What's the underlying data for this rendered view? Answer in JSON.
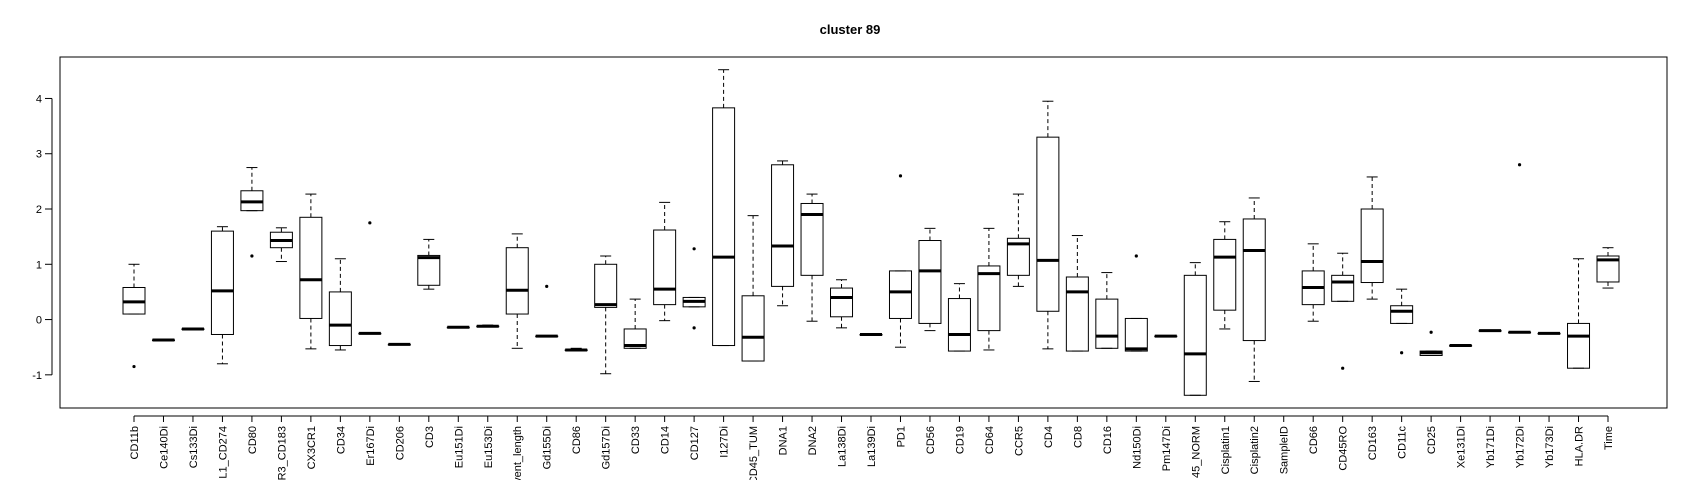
{
  "chart_data": {
    "type": "box",
    "title": "cluster 89",
    "xlabel": "",
    "ylabel": "",
    "ylim": [
      -1.6,
      4.75
    ],
    "yticks": [
      -1,
      0,
      1,
      2,
      3,
      4
    ],
    "grid": false,
    "legend": "none",
    "categories": [
      "CD11b",
      "Ce140Di",
      "Cs133Di",
      "L1_CD274",
      "CD80",
      "R3_CD183",
      "CX3CR1",
      "CD34",
      "Er167Di",
      "CD206",
      "CD3",
      "Eu151Di",
      "Eu153Di",
      "vent_length",
      "Gd155Di",
      "CD86",
      "Gd157Di",
      "CD33",
      "CD14",
      "CD127",
      "I127Di",
      "CD45_TUM",
      "DNA1",
      "DNA2",
      "La138Di",
      "La139Di",
      "PD1",
      "CD56",
      "CD19",
      "CD64",
      "CCR5",
      "CD4",
      "CD8",
      "CD16",
      "Nd150Di",
      "Pm147Di",
      "45_NORM",
      "Cisplatin1",
      "Cisplatin2",
      "SampleID",
      "CD66",
      "CD45RO",
      "CD163",
      "CD11c",
      "CD25",
      "Xe131Di",
      "Yb171Di",
      "Yb172Di",
      "Yb173Di",
      "HLA.DR",
      "Time"
    ],
    "boxes": [
      {
        "whisker_low": 0.1,
        "q1": 0.1,
        "median": 0.32,
        "q3": 0.58,
        "whisker_high": 1.0,
        "outliers": [
          -0.85
        ]
      },
      {
        "whisker_low": -0.37,
        "q1": -0.37,
        "median": -0.37,
        "q3": -0.37,
        "whisker_high": -0.37,
        "outliers": []
      },
      {
        "whisker_low": -0.17,
        "q1": -0.17,
        "median": -0.17,
        "q3": -0.17,
        "whisker_high": -0.17,
        "outliers": []
      },
      {
        "whisker_low": -0.8,
        "q1": -0.27,
        "median": 0.52,
        "q3": 1.6,
        "whisker_high": 1.68,
        "outliers": []
      },
      {
        "whisker_low": 1.97,
        "q1": 1.97,
        "median": 2.13,
        "q3": 2.33,
        "whisker_high": 2.75,
        "outliers": [
          1.15
        ]
      },
      {
        "whisker_low": 1.05,
        "q1": 1.3,
        "median": 1.43,
        "q3": 1.58,
        "whisker_high": 1.66,
        "outliers": []
      },
      {
        "whisker_low": -0.53,
        "q1": 0.02,
        "median": 0.72,
        "q3": 1.85,
        "whisker_high": 2.27,
        "outliers": []
      },
      {
        "whisker_low": -0.55,
        "q1": -0.47,
        "median": -0.1,
        "q3": 0.5,
        "whisker_high": 1.1,
        "outliers": []
      },
      {
        "whisker_low": -0.25,
        "q1": -0.25,
        "median": -0.25,
        "q3": -0.25,
        "whisker_high": -0.25,
        "outliers": [
          1.75
        ]
      },
      {
        "whisker_low": -0.45,
        "q1": -0.45,
        "median": -0.45,
        "q3": -0.45,
        "whisker_high": -0.45,
        "outliers": []
      },
      {
        "whisker_low": 0.55,
        "q1": 0.62,
        "median": 1.12,
        "q3": 1.16,
        "whisker_high": 1.45,
        "outliers": []
      },
      {
        "whisker_low": -0.14,
        "q1": -0.14,
        "median": -0.14,
        "q3": -0.14,
        "whisker_high": -0.14,
        "outliers": []
      },
      {
        "whisker_low": -0.12,
        "q1": -0.12,
        "median": -0.12,
        "q3": -0.12,
        "whisker_high": -0.1,
        "outliers": []
      },
      {
        "whisker_low": -0.52,
        "q1": 0.1,
        "median": 0.53,
        "q3": 1.3,
        "whisker_high": 1.55,
        "outliers": []
      },
      {
        "whisker_low": -0.3,
        "q1": -0.3,
        "median": -0.3,
        "q3": -0.3,
        "whisker_high": -0.3,
        "outliers": [
          0.6
        ]
      },
      {
        "whisker_low": -0.55,
        "q1": -0.55,
        "median": -0.55,
        "q3": -0.55,
        "whisker_high": -0.52,
        "outliers": []
      },
      {
        "whisker_low": -0.98,
        "q1": 0.22,
        "median": 0.27,
        "q3": 1.0,
        "whisker_high": 1.15,
        "outliers": []
      },
      {
        "whisker_low": -0.52,
        "q1": -0.52,
        "median": -0.47,
        "q3": -0.17,
        "whisker_high": 0.37,
        "outliers": []
      },
      {
        "whisker_low": -0.02,
        "q1": 0.27,
        "median": 0.55,
        "q3": 1.62,
        "whisker_high": 2.12,
        "outliers": []
      },
      {
        "whisker_low": 0.23,
        "q1": 0.23,
        "median": 0.33,
        "q3": 0.4,
        "whisker_high": 0.4,
        "outliers": [
          1.28,
          -0.15
        ]
      },
      {
        "whisker_low": -0.47,
        "q1": -0.47,
        "median": 1.13,
        "q3": 3.83,
        "whisker_high": 4.52,
        "outliers": []
      },
      {
        "whisker_low": -0.75,
        "q1": -0.75,
        "median": -0.32,
        "q3": 0.43,
        "whisker_high": 1.88,
        "outliers": []
      },
      {
        "whisker_low": 0.25,
        "q1": 0.6,
        "median": 1.33,
        "q3": 2.8,
        "whisker_high": 2.87,
        "outliers": []
      },
      {
        "whisker_low": -0.03,
        "q1": 0.8,
        "median": 1.9,
        "q3": 2.1,
        "whisker_high": 2.27,
        "outliers": []
      },
      {
        "whisker_low": -0.15,
        "q1": 0.05,
        "median": 0.4,
        "q3": 0.57,
        "whisker_high": 0.72,
        "outliers": []
      },
      {
        "whisker_low": -0.27,
        "q1": -0.27,
        "median": -0.27,
        "q3": -0.27,
        "whisker_high": -0.27,
        "outliers": []
      },
      {
        "whisker_low": -0.5,
        "q1": 0.02,
        "median": 0.5,
        "q3": 0.88,
        "whisker_high": 0.88,
        "outliers": [
          2.6
        ]
      },
      {
        "whisker_low": -0.2,
        "q1": -0.07,
        "median": 0.88,
        "q3": 1.43,
        "whisker_high": 1.65,
        "outliers": []
      },
      {
        "whisker_low": -0.57,
        "q1": -0.57,
        "median": -0.27,
        "q3": 0.38,
        "whisker_high": 0.65,
        "outliers": []
      },
      {
        "whisker_low": -0.55,
        "q1": -0.2,
        "median": 0.83,
        "q3": 0.97,
        "whisker_high": 1.65,
        "outliers": []
      },
      {
        "whisker_low": 0.6,
        "q1": 0.8,
        "median": 1.37,
        "q3": 1.47,
        "whisker_high": 2.27,
        "outliers": []
      },
      {
        "whisker_low": -0.53,
        "q1": 0.15,
        "median": 1.07,
        "q3": 3.3,
        "whisker_high": 3.95,
        "outliers": []
      },
      {
        "whisker_low": -0.57,
        "q1": -0.57,
        "median": 0.5,
        "q3": 0.77,
        "whisker_high": 1.52,
        "outliers": []
      },
      {
        "whisker_low": -0.52,
        "q1": -0.52,
        "median": -0.3,
        "q3": 0.37,
        "whisker_high": 0.85,
        "outliers": []
      },
      {
        "whisker_low": -0.57,
        "q1": -0.57,
        "median": -0.53,
        "q3": 0.02,
        "whisker_high": 0.02,
        "outliers": [
          1.15
        ]
      },
      {
        "whisker_low": -0.3,
        "q1": -0.3,
        "median": -0.3,
        "q3": -0.3,
        "whisker_high": -0.3,
        "outliers": []
      },
      {
        "whisker_low": -1.37,
        "q1": -1.37,
        "median": -0.62,
        "q3": 0.8,
        "whisker_high": 1.03,
        "outliers": []
      },
      {
        "whisker_low": -0.17,
        "q1": 0.17,
        "median": 1.13,
        "q3": 1.45,
        "whisker_high": 1.77,
        "outliers": []
      },
      {
        "whisker_low": -1.12,
        "q1": -0.38,
        "median": 1.25,
        "q3": 1.82,
        "whisker_high": 2.2,
        "outliers": []
      },
      null,
      {
        "whisker_low": -0.03,
        "q1": 0.27,
        "median": 0.58,
        "q3": 0.88,
        "whisker_high": 1.37,
        "outliers": []
      },
      {
        "whisker_low": 0.33,
        "q1": 0.33,
        "median": 0.68,
        "q3": 0.8,
        "whisker_high": 1.2,
        "outliers": [
          -0.88
        ]
      },
      {
        "whisker_low": 0.37,
        "q1": 0.67,
        "median": 1.05,
        "q3": 2.0,
        "whisker_high": 2.58,
        "outliers": []
      },
      {
        "whisker_low": -0.07,
        "q1": -0.07,
        "median": 0.15,
        "q3": 0.25,
        "whisker_high": 0.55,
        "outliers": [
          -0.6
        ]
      },
      {
        "whisker_low": -0.65,
        "q1": -0.65,
        "median": -0.6,
        "q3": -0.57,
        "whisker_high": -0.57,
        "outliers": [
          -0.23
        ]
      },
      {
        "whisker_low": -0.47,
        "q1": -0.47,
        "median": -0.47,
        "q3": -0.47,
        "whisker_high": -0.47,
        "outliers": []
      },
      {
        "whisker_low": -0.2,
        "q1": -0.2,
        "median": -0.2,
        "q3": -0.2,
        "whisker_high": -0.2,
        "outliers": []
      },
      {
        "whisker_low": -0.23,
        "q1": -0.23,
        "median": -0.23,
        "q3": -0.23,
        "whisker_high": -0.23,
        "outliers": [
          2.8
        ]
      },
      {
        "whisker_low": -0.25,
        "q1": -0.25,
        "median": -0.25,
        "q3": -0.25,
        "whisker_high": -0.25,
        "outliers": []
      },
      {
        "whisker_low": -0.88,
        "q1": -0.88,
        "median": -0.3,
        "q3": -0.07,
        "whisker_high": 1.1,
        "outliers": []
      },
      {
        "whisker_low": 0.57,
        "q1": 0.68,
        "median": 1.08,
        "q3": 1.15,
        "whisker_high": 1.3,
        "outliers": []
      }
    ]
  }
}
